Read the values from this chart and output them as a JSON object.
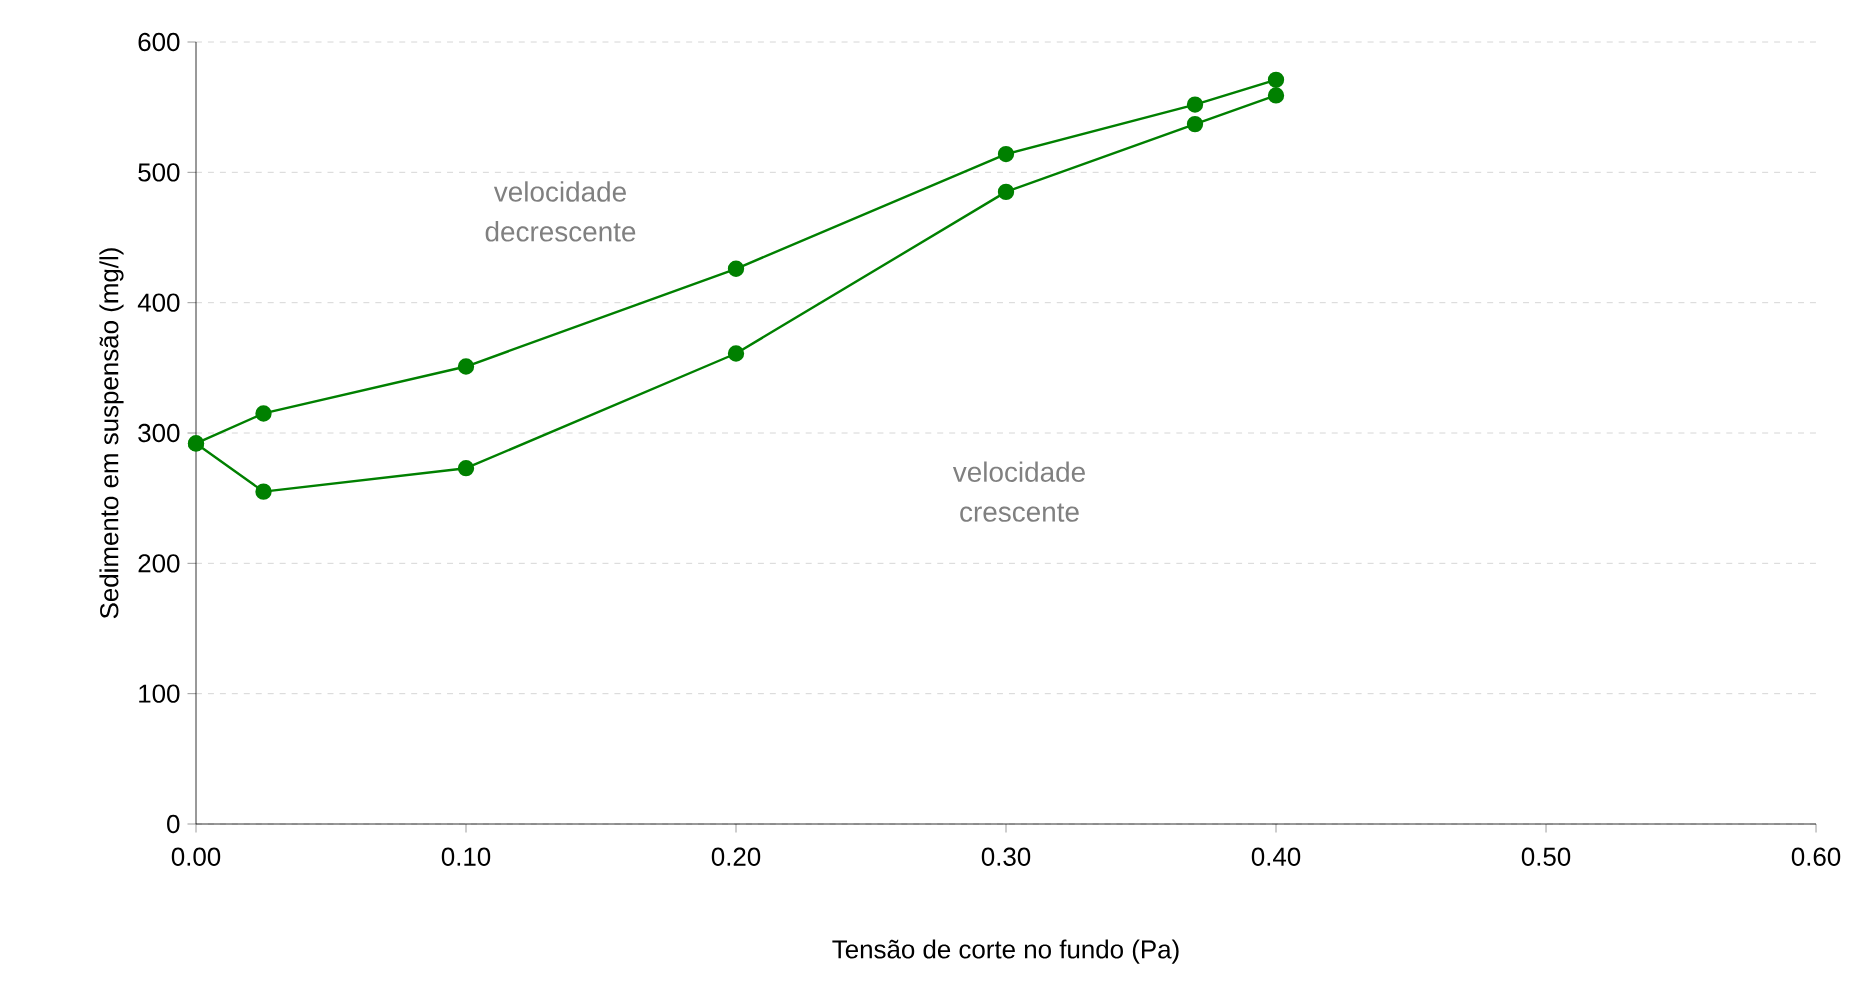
{
  "chart_data": {
    "type": "line",
    "xlabel": "Tensão de corte no fundo (Pa)",
    "ylabel": "Sedimento em suspensão (mg/l)",
    "series": [
      {
        "color": "#008000",
        "x": [
          0,
          0.025,
          0.1,
          0.2,
          0.3,
          0.37,
          0.4
        ],
        "values": [
          292,
          255,
          273,
          361,
          485,
          537,
          559
        ]
      },
      {
        "color": "#008000",
        "x": [
          0.4,
          0.37,
          0.3,
          0.2,
          0.1,
          0.025,
          0
        ],
        "values": [
          571,
          552,
          514,
          426,
          351,
          315,
          292
        ]
      }
    ],
    "xlim": [
      0,
      0.6
    ],
    "xticks": [
      {
        "value": 0,
        "label": "0.00"
      },
      {
        "value": 0.1,
        "label": "0.10"
      },
      {
        "value": 0.2,
        "label": "0.20"
      },
      {
        "value": 0.3,
        "label": "0.30"
      },
      {
        "value": 0.4,
        "label": "0.40"
      },
      {
        "value": 0.5,
        "label": "0.50"
      },
      {
        "value": 0.6,
        "label": "0.60"
      }
    ],
    "ylim": [
      0,
      600
    ],
    "yticks": [
      0,
      100,
      200,
      300,
      400,
      500,
      600
    ],
    "grid": "y",
    "marker": "circle",
    "line_style": "solid",
    "annotations": [
      "velocidade decrescente",
      "velocidade crescente"
    ]
  }
}
